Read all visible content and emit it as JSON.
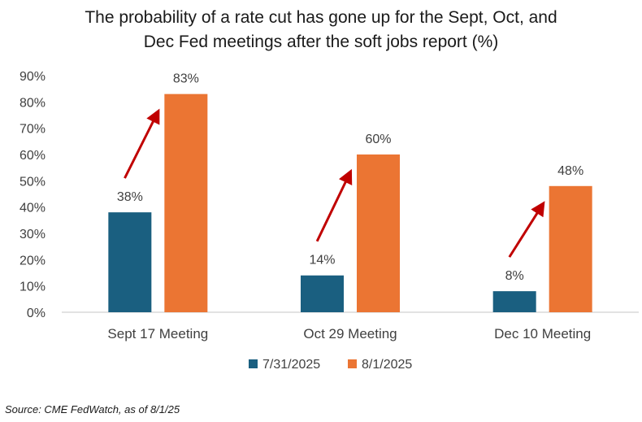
{
  "chart_data": {
    "type": "bar",
    "title_lines": [
      "The probability of a rate cut has gone up for the Sept, Oct, and",
      "Dec Fed meetings after the soft jobs report (%)"
    ],
    "categories": [
      "Sept 17 Meeting",
      "Oct 29 Meeting",
      "Dec 10 Meeting"
    ],
    "series": [
      {
        "name": "7/31/2025",
        "values": [
          38,
          14,
          8
        ],
        "labels": [
          "38%",
          "14%",
          "8%"
        ],
        "color": "#1a5f80"
      },
      {
        "name": "8/1/2025",
        "values": [
          83,
          60,
          48
        ],
        "labels": [
          "83%",
          "60%",
          "48%"
        ],
        "color": "#eb7533"
      }
    ],
    "yticks": [
      0,
      10,
      20,
      30,
      40,
      50,
      60,
      70,
      80,
      90
    ],
    "ytick_labels": [
      "0%",
      "10%",
      "20%",
      "30%",
      "40%",
      "50%",
      "60%",
      "70%",
      "80%",
      "90%"
    ],
    "ylim": [
      0,
      90
    ],
    "grid": false,
    "legend_position": "bottom-center",
    "annotation": "red arrows pointing up from the 7/31/2025 bar to the 8/1/2025 bar in each group",
    "arrow_color": "#c00000"
  },
  "source": "Source: CME FedWatch, as of 8/1/25"
}
